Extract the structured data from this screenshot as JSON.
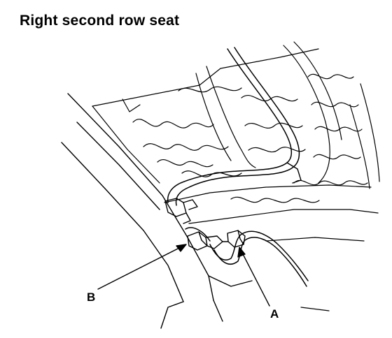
{
  "title": "Right second row seat",
  "callouts": {
    "a": "A",
    "b": "B"
  },
  "colors": {
    "line": "#000000",
    "background": "#ffffff"
  }
}
